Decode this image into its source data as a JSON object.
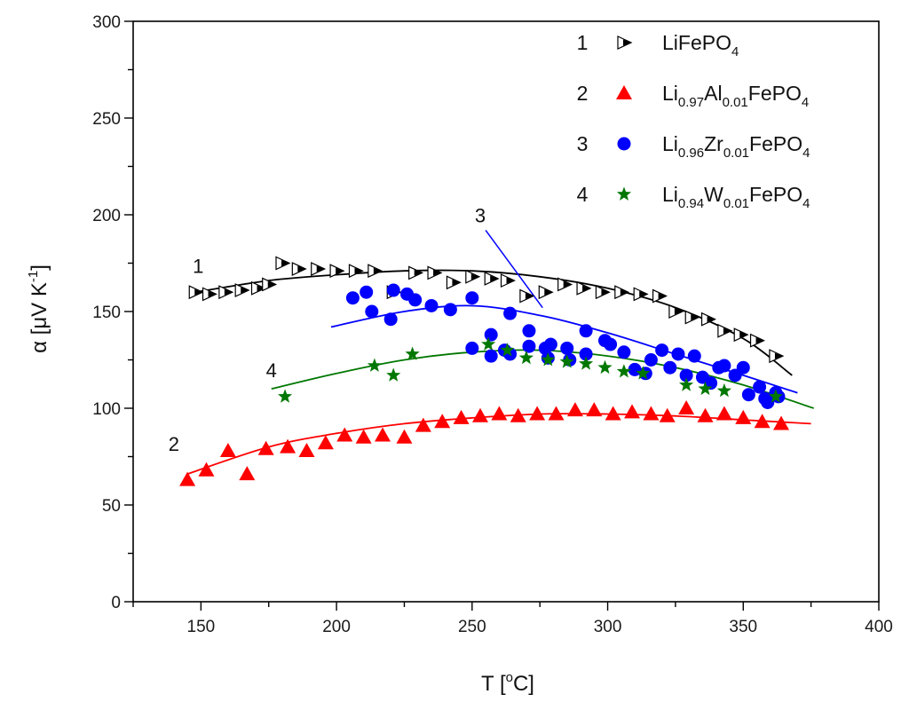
{
  "chart_data": {
    "type": "scatter",
    "xlabel": "T [°C]",
    "xlabel_prefix": "T [",
    "xlabel_sup": "o",
    "xlabel_suffix": "C]",
    "ylabel": "α [μV K⁻¹]",
    "ylabel_prefix": "α [μV K",
    "ylabel_sup": "-1",
    "ylabel_suffix": "]",
    "xlim": [
      125,
      400
    ],
    "ylim": [
      0,
      300
    ],
    "x_ticks": [
      150,
      200,
      250,
      300,
      350,
      400
    ],
    "y_ticks": [
      0,
      50,
      100,
      150,
      200,
      250,
      300
    ],
    "legend_position": "top-right",
    "series": [
      {
        "id": "1",
        "name": "LiFePO4",
        "legend_parts": [
          [
            "Li",
            ""
          ],
          [
            "FePO",
            ""
          ],
          [
            "4",
            "sub"
          ]
        ],
        "marker": "right-triangle",
        "color": "#000000",
        "fill_color": "#ffffff",
        "points": [
          [
            148,
            160
          ],
          [
            153,
            159
          ],
          [
            159,
            160
          ],
          [
            165,
            161
          ],
          [
            171,
            162
          ],
          [
            175,
            164
          ],
          [
            180,
            175
          ],
          [
            186,
            172
          ],
          [
            193,
            172
          ],
          [
            200,
            171
          ],
          [
            207,
            171
          ],
          [
            214,
            171
          ],
          [
            221,
            160
          ],
          [
            229,
            170
          ],
          [
            236,
            170
          ],
          [
            243,
            165
          ],
          [
            250,
            168
          ],
          [
            257,
            167
          ],
          [
            263,
            166
          ],
          [
            270,
            158
          ],
          [
            277,
            160
          ],
          [
            284,
            164
          ],
          [
            291,
            162
          ],
          [
            298,
            160
          ],
          [
            305,
            160
          ],
          [
            312,
            159
          ],
          [
            319,
            158
          ],
          [
            325,
            150
          ],
          [
            331,
            147
          ],
          [
            337,
            146
          ],
          [
            343,
            140
          ],
          [
            349,
            138
          ],
          [
            355,
            135
          ],
          [
            362,
            127
          ]
        ],
        "fit_curve": [
          [
            148,
            160
          ],
          [
            175,
            166
          ],
          [
            200,
            169
          ],
          [
            225,
            171
          ],
          [
            250,
            171
          ],
          [
            275,
            168
          ],
          [
            300,
            162
          ],
          [
            325,
            152
          ],
          [
            350,
            136
          ],
          [
            368,
            117
          ]
        ]
      },
      {
        "id": "2",
        "name": "Li0.97Al0.01FePO4",
        "legend_parts": [
          [
            "Li",
            ""
          ],
          [
            "0.97",
            "sub"
          ],
          [
            "Al",
            ""
          ],
          [
            "0.01",
            "sub"
          ],
          [
            "FePO",
            ""
          ],
          [
            "4",
            "sub"
          ]
        ],
        "marker": "triangle",
        "color": "#ff0000",
        "points": [
          [
            145,
            63
          ],
          [
            152,
            68
          ],
          [
            160,
            78
          ],
          [
            167,
            66
          ],
          [
            174,
            79
          ],
          [
            182,
            80
          ],
          [
            189,
            78
          ],
          [
            196,
            82
          ],
          [
            203,
            86
          ],
          [
            210,
            85
          ],
          [
            217,
            86
          ],
          [
            225,
            85
          ],
          [
            232,
            91
          ],
          [
            239,
            93
          ],
          [
            246,
            95
          ],
          [
            253,
            96
          ],
          [
            260,
            97
          ],
          [
            267,
            96
          ],
          [
            274,
            97
          ],
          [
            281,
            97
          ],
          [
            288,
            99
          ],
          [
            295,
            99
          ],
          [
            302,
            97
          ],
          [
            309,
            98
          ],
          [
            316,
            97
          ],
          [
            322,
            96
          ],
          [
            329,
            100
          ],
          [
            336,
            96
          ],
          [
            343,
            97
          ],
          [
            350,
            95
          ],
          [
            357,
            93
          ],
          [
            364,
            92
          ]
        ],
        "fit_curve": [
          [
            145,
            66
          ],
          [
            175,
            80
          ],
          [
            200,
            87
          ],
          [
            225,
            92
          ],
          [
            250,
            95
          ],
          [
            275,
            97
          ],
          [
            300,
            97
          ],
          [
            325,
            96
          ],
          [
            350,
            94
          ],
          [
            375,
            92
          ]
        ]
      },
      {
        "id": "3",
        "name": "Li0.96Zr0.01FePO4",
        "legend_parts": [
          [
            "Li",
            ""
          ],
          [
            "0.96",
            "sub"
          ],
          [
            "Zr",
            ""
          ],
          [
            "0.01",
            "sub"
          ],
          [
            "FePO",
            ""
          ],
          [
            "4",
            "sub"
          ]
        ],
        "marker": "circle",
        "color": "#0000ff",
        "points": [
          [
            206,
            157
          ],
          [
            211,
            160
          ],
          [
            213,
            150
          ],
          [
            220,
            146
          ],
          [
            221,
            161
          ],
          [
            226,
            159
          ],
          [
            229,
            156
          ],
          [
            235,
            153
          ],
          [
            242,
            151
          ],
          [
            250,
            157
          ],
          [
            250,
            131
          ],
          [
            257,
            138
          ],
          [
            257,
            127
          ],
          [
            262,
            130
          ],
          [
            264,
            149
          ],
          [
            264,
            128
          ],
          [
            271,
            140
          ],
          [
            271,
            132
          ],
          [
            277,
            131
          ],
          [
            278,
            126
          ],
          [
            279,
            133
          ],
          [
            285,
            131
          ],
          [
            286,
            125
          ],
          [
            292,
            140
          ],
          [
            292,
            128
          ],
          [
            299,
            135
          ],
          [
            301,
            133
          ],
          [
            306,
            129
          ],
          [
            310,
            120
          ],
          [
            314,
            118
          ],
          [
            316,
            125
          ],
          [
            320,
            130
          ],
          [
            323,
            121
          ],
          [
            326,
            128
          ],
          [
            329,
            117
          ],
          [
            332,
            127
          ],
          [
            335,
            116
          ],
          [
            338,
            113
          ],
          [
            341,
            121
          ],
          [
            343,
            122
          ],
          [
            347,
            117
          ],
          [
            350,
            121
          ],
          [
            352,
            107
          ],
          [
            356,
            111
          ],
          [
            358,
            105
          ],
          [
            359,
            103
          ],
          [
            362,
            108
          ],
          [
            363,
            106
          ]
        ],
        "fit_curve": [
          [
            198,
            142
          ],
          [
            225,
            150
          ],
          [
            250,
            153
          ],
          [
            275,
            148
          ],
          [
            300,
            139
          ],
          [
            325,
            128
          ],
          [
            350,
            117
          ],
          [
            370,
            108
          ]
        ],
        "callout": {
          "from": [
            255,
            192
          ],
          "to": [
            276,
            152
          ]
        }
      },
      {
        "id": "4",
        "name": "Li0.94W0.01FePO4",
        "legend_parts": [
          [
            "Li",
            ""
          ],
          [
            "0.94",
            "sub"
          ],
          [
            "W",
            ""
          ],
          [
            "0.01",
            "sub"
          ],
          [
            "FePO",
            ""
          ],
          [
            "4",
            "sub"
          ]
        ],
        "marker": "star",
        "color": "#007700",
        "points": [
          [
            181,
            106
          ],
          [
            214,
            122
          ],
          [
            221,
            117
          ],
          [
            228,
            128
          ],
          [
            256,
            133
          ],
          [
            263,
            130
          ],
          [
            270,
            126
          ],
          [
            278,
            125
          ],
          [
            285,
            124
          ],
          [
            292,
            123
          ],
          [
            299,
            121
          ],
          [
            306,
            119
          ],
          [
            313,
            118
          ],
          [
            329,
            112
          ],
          [
            336,
            110
          ],
          [
            343,
            109
          ],
          [
            362,
            106
          ]
        ],
        "fit_curve": [
          [
            176,
            110
          ],
          [
            200,
            118
          ],
          [
            225,
            125
          ],
          [
            250,
            129
          ],
          [
            275,
            130
          ],
          [
            300,
            127
          ],
          [
            325,
            121
          ],
          [
            350,
            112
          ],
          [
            376,
            100
          ]
        ]
      }
    ],
    "curve_labels": [
      {
        "text": "1",
        "x": 149,
        "y": 170
      },
      {
        "text": "2",
        "x": 140,
        "y": 78
      },
      {
        "text": "3",
        "x": 253,
        "y": 196
      },
      {
        "text": "4",
        "x": 176,
        "y": 116
      }
    ]
  }
}
